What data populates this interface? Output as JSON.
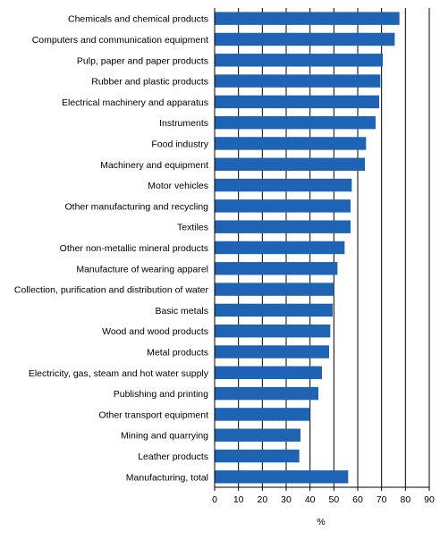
{
  "chart_data": {
    "type": "bar",
    "orientation": "horizontal",
    "title": "",
    "xlabel": "%",
    "ylabel": "",
    "xlim": [
      0,
      90
    ],
    "xticks": [
      0,
      10,
      20,
      30,
      40,
      50,
      60,
      70,
      80,
      90
    ],
    "grid": "vertical",
    "legend": "none",
    "bar_color": "#1f64b4",
    "categories": [
      "Chemicals and chemical products",
      "Computers and communication equipment",
      "Pulp, paper and paper products",
      "Rubber and plastic products",
      "Electrical machinery and apparatus",
      "Instruments",
      "Food industry",
      "Machinery and equipment",
      "Motor vehicles",
      "Other manufacturing and recycling",
      "Textiles",
      "Other non-metallic mineral products",
      "Manufacture of wearing apparel",
      "Collection, purification and distribution of water",
      "Basic metals",
      "Wood and wood products",
      "Metal products",
      "Electricity, gas, steam and hot water supply",
      "Publishing and printing",
      "Other transport equipment",
      "Mining and quarrying",
      "Leather products",
      "Manufacturing, total"
    ],
    "values": [
      77.5,
      75.5,
      70.5,
      69.5,
      69,
      67.5,
      63.5,
      63,
      57.5,
      57,
      57,
      54.5,
      51.5,
      50,
      49.5,
      48.5,
      48,
      45,
      43.5,
      40,
      36,
      35.5,
      56
    ]
  }
}
